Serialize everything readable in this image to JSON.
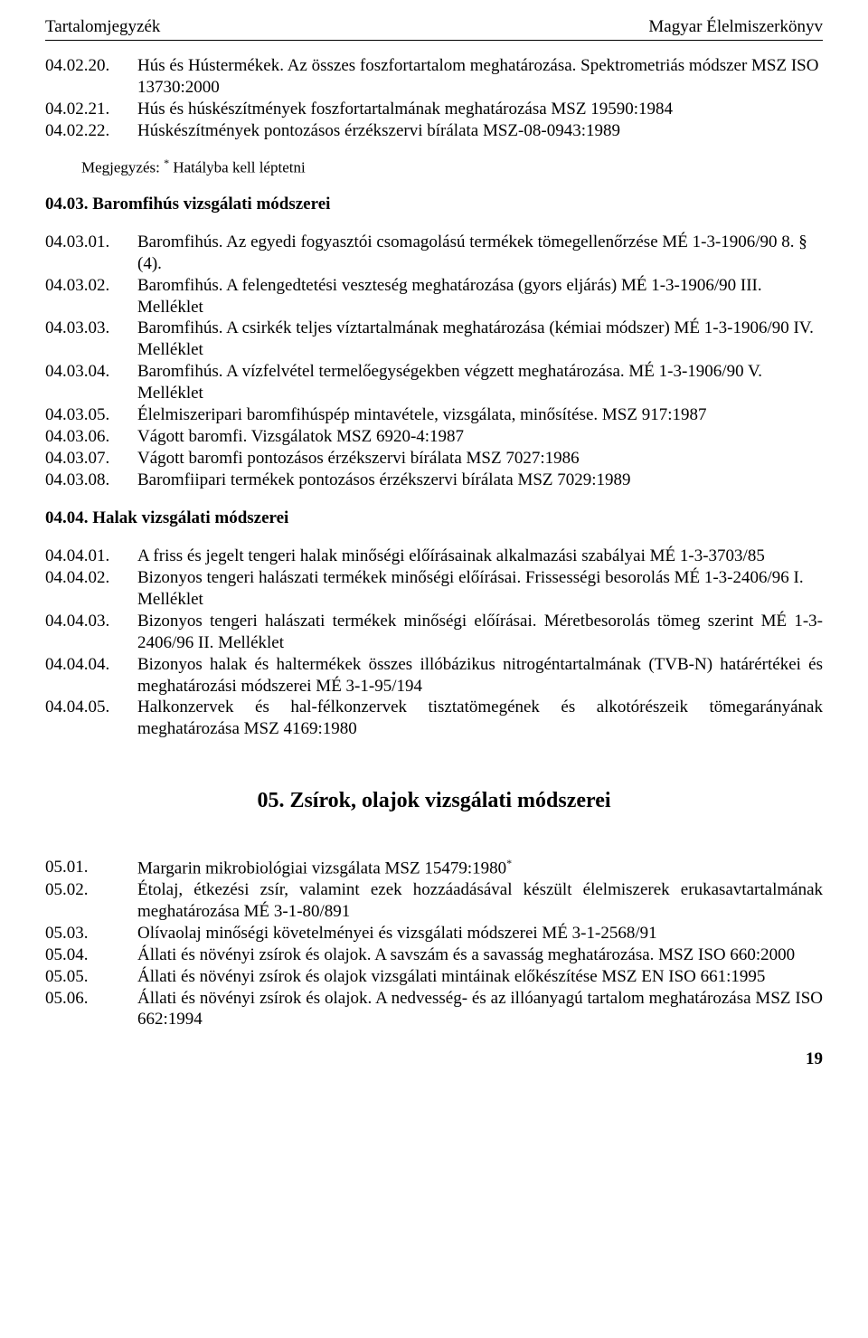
{
  "header": {
    "left": "Tartalomjegyzék",
    "right": "Magyar Élelmiszerkönyv"
  },
  "group1": [
    {
      "code": "04.02.20.",
      "text": "Hús és Hústermékek. Az összes foszfortartalom meghatározása. Spektrometriás módszer MSZ ISO 13730:2000"
    },
    {
      "code": "04.02.21.",
      "text": "Hús és húskészítmények foszfortartalmának meghatározása MSZ 19590:1984"
    },
    {
      "code": "04.02.22.",
      "text": "Húskészítmények pontozásos érzékszervi bírálata MSZ-08-0943:1989"
    }
  ],
  "note1": {
    "label": "Megjegyzés: ",
    "text": "Hatályba kell léptetni"
  },
  "section0403": {
    "title": "04.03. Baromfihús vizsgálati módszerei",
    "items": [
      {
        "code": "04.03.01.",
        "text": "Baromfihús. Az egyedi fogyasztói csomagolású termékek tömegellenőrzése MÉ 1-3-1906/90  8. § (4)."
      },
      {
        "code": "04.03.02.",
        "text": "Baromfihús. A felengedtetési veszteség meghatározása (gyors eljárás) MÉ 1-3-1906/90  III. Melléklet"
      },
      {
        "code": "04.03.03.",
        "text": "Baromfihús. A csirkék teljes víztartalmának meghatározása (kémiai módszer) MÉ 1-3-1906/90  IV. Melléklet"
      },
      {
        "code": "04.03.04.",
        "text": "Baromfihús. A vízfelvétel termelőegységekben végzett meghatározása. MÉ 1-3-1906/90  V. Melléklet"
      },
      {
        "code": "04.03.05.",
        "text": "Élelmiszeripari baromfihúspép mintavétele, vizsgálata, minősítése. MSZ 917:1987"
      },
      {
        "code": "04.03.06.",
        "text": "Vágott baromfi. Vizsgálatok MSZ 6920-4:1987"
      },
      {
        "code": "04.03.07.",
        "text": "Vágott baromfi pontozásos érzékszervi bírálata MSZ 7027:1986"
      },
      {
        "code": "04.03.08.",
        "text": "Baromfiipari termékek pontozásos érzékszervi bírálata MSZ 7029:1989"
      }
    ]
  },
  "section0404": {
    "title": "04.04. Halak vizsgálati módszerei",
    "items": [
      {
        "code": "04.04.01.",
        "text": "A friss és jegelt tengeri halak minőségi előírásainak alkalmazási szabályai MÉ 1-3-3703/85"
      },
      {
        "code": "04.04.02.",
        "text": "Bizonyos tengeri halászati termékek minőségi előírásai. Frissességi besorolás MÉ 1-3-2406/96 I. Melléklet"
      },
      {
        "code": "04.04.03.",
        "text": "Bizonyos tengeri halászati termékek minőségi előírásai. Méretbesorolás tömeg szerint MÉ 1-3-2406/96 II. Melléklet"
      },
      {
        "code": "04.04.04.",
        "text": "Bizonyos halak és haltermékek összes illóbázikus nitrogéntartalmának (TVB-N) határértékei és meghatározási módszerei MÉ 3-1-95/194"
      },
      {
        "code": "04.04.05.",
        "text": "Halkonzervek és hal-félkonzervek tisztatömegének és alkotórészeik tömegarányának meghatározása MSZ 4169:1980"
      }
    ]
  },
  "chapter05": {
    "title": "05. Zsírok, olajok vizsgálati módszerei",
    "items": [
      {
        "code": "05.01.",
        "text": "Margarin mikrobiológiai vizsgálata MSZ 15479:1980",
        "sup": "*"
      },
      {
        "code": "05.02.",
        "text": "Étolaj, étkezési zsír, valamint ezek hozzáadásával készült élelmiszerek erukasavtartalmának meghatározása MÉ 3-1-80/891"
      },
      {
        "code": "05.03.",
        "text": "Olívaolaj minőségi követelményei és vizsgálati módszerei MÉ 3-1-2568/91"
      },
      {
        "code": "05.04.",
        "text": "Állati és növényi zsírok és olajok. A savszám és a savasság meghatározása. MSZ ISO 660:2000"
      },
      {
        "code": "05.05.",
        "text": "Állati és növényi zsírok és olajok vizsgálati mintáinak előkészítése MSZ EN ISO 661:1995"
      },
      {
        "code": "05.06.",
        "text": "Állati és növényi zsírok és olajok. A nedvesség- és az illóanyagú tartalom meghatározása MSZ ISO 662:1994"
      }
    ]
  },
  "pageNumber": "19"
}
